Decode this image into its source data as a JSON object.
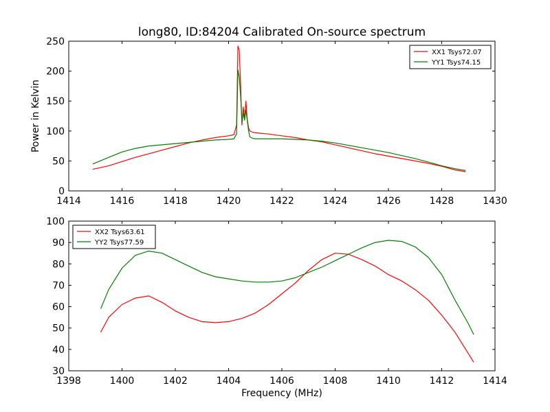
{
  "chart_data": [
    {
      "type": "line",
      "title": "long80, ID:84204 Calibrated On-source spectrum",
      "xlabel": "",
      "ylabel": "Power in Kelvin",
      "xlim": [
        1414,
        1430
      ],
      "ylim": [
        0,
        250
      ],
      "xticks": [
        1414,
        1416,
        1418,
        1420,
        1422,
        1424,
        1426,
        1428,
        1430
      ],
      "yticks": [
        0,
        50,
        100,
        150,
        200,
        250
      ],
      "legend_position": "top-right",
      "grid": false,
      "series": [
        {
          "name": "XX1 Tsys72.07",
          "color": "#ff0000",
          "x": [
            1414.9,
            1415.5,
            1416,
            1416.5,
            1417,
            1417.5,
            1418,
            1418.5,
            1419,
            1419.5,
            1420,
            1420.2,
            1420.3,
            1420.35,
            1420.4,
            1420.45,
            1420.5,
            1420.55,
            1420.6,
            1420.65,
            1420.7,
            1420.75,
            1420.8,
            1420.9,
            1421,
            1421.5,
            1422,
            1422.5,
            1423,
            1423.5,
            1424,
            1424.5,
            1425,
            1425.5,
            1426,
            1426.5,
            1427,
            1427.5,
            1428,
            1428.5,
            1428.9
          ],
          "y": [
            36,
            42,
            49,
            56,
            62,
            68,
            74,
            80,
            85,
            89,
            92,
            94,
            110,
            242,
            235,
            180,
            110,
            140,
            120,
            150,
            120,
            105,
            100,
            98,
            97,
            95,
            92,
            89,
            85,
            82,
            77,
            72,
            67,
            62,
            58,
            54,
            50,
            46,
            41,
            35,
            32
          ]
        },
        {
          "name": "YY1 Tsys74.15",
          "color": "#007f00",
          "x": [
            1414.9,
            1415.5,
            1416,
            1416.5,
            1417,
            1417.5,
            1418,
            1418.5,
            1419,
            1419.5,
            1420,
            1420.2,
            1420.3,
            1420.35,
            1420.4,
            1420.45,
            1420.5,
            1420.55,
            1420.6,
            1420.65,
            1420.7,
            1420.75,
            1420.8,
            1420.9,
            1421,
            1421.5,
            1422,
            1422.5,
            1423,
            1423.5,
            1424,
            1424.5,
            1425,
            1425.5,
            1426,
            1426.5,
            1427,
            1427.5,
            1428,
            1428.5,
            1428.9
          ],
          "y": [
            45,
            56,
            65,
            71,
            75,
            77,
            79,
            81,
            83,
            85,
            86,
            87,
            95,
            202,
            190,
            160,
            115,
            130,
            118,
            135,
            118,
            100,
            90,
            88,
            87,
            87,
            87,
            86,
            85,
            83,
            80,
            76,
            72,
            68,
            64,
            59,
            54,
            48,
            42,
            37,
            34
          ]
        }
      ]
    },
    {
      "type": "line",
      "title": "",
      "xlabel": "Frequency (MHz)",
      "ylabel": "",
      "xlim": [
        1398,
        1414
      ],
      "ylim": [
        30,
        100
      ],
      "xticks": [
        1398,
        1400,
        1402,
        1404,
        1406,
        1408,
        1410,
        1412,
        1414
      ],
      "yticks": [
        30,
        40,
        50,
        60,
        70,
        80,
        90,
        100
      ],
      "legend_position": "top-left",
      "grid": false,
      "series": [
        {
          "name": "XX2 Tsys63.61",
          "color": "#ff0000",
          "x": [
            1399.2,
            1399.5,
            1400,
            1400.5,
            1401,
            1401.5,
            1402,
            1402.5,
            1403,
            1403.5,
            1404,
            1404.5,
            1405,
            1405.5,
            1406,
            1406.5,
            1407,
            1407.5,
            1408,
            1408.5,
            1409,
            1409.5,
            1410,
            1410.5,
            1411,
            1411.5,
            1412,
            1412.5,
            1413,
            1413.2
          ],
          "y": [
            48,
            55,
            61,
            64,
            65,
            62,
            58,
            55,
            53,
            52.5,
            53,
            54.5,
            57,
            61,
            66,
            71,
            77,
            82,
            85,
            84.5,
            82,
            79,
            75,
            72,
            68,
            63,
            56,
            48,
            38,
            34
          ]
        },
        {
          "name": "YY2 Tsys77.59",
          "color": "#007f00",
          "x": [
            1399.2,
            1399.5,
            1400,
            1400.5,
            1401,
            1401.5,
            1402,
            1402.5,
            1403,
            1403.5,
            1404,
            1404.5,
            1405,
            1405.5,
            1406,
            1406.5,
            1407,
            1407.5,
            1408,
            1408.5,
            1409,
            1409.5,
            1410,
            1410.5,
            1411,
            1411.5,
            1412,
            1412.5,
            1413,
            1413.2
          ],
          "y": [
            59,
            68,
            78,
            84,
            86,
            85,
            82,
            79,
            76,
            74,
            73,
            72,
            71.5,
            71.5,
            72,
            73.5,
            76,
            78.5,
            81.5,
            84.5,
            87.5,
            90,
            91,
            90.5,
            88,
            83,
            75,
            63,
            52,
            47
          ]
        }
      ]
    }
  ]
}
